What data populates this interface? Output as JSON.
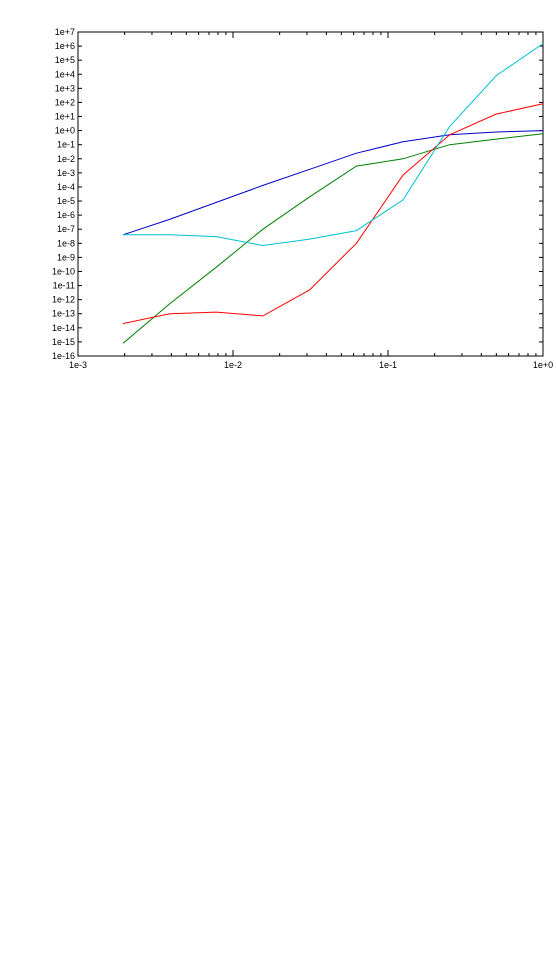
{
  "chart_data": {
    "type": "line",
    "title": "",
    "xlabel": "",
    "ylabel": "",
    "x_scale": "log",
    "y_scale": "log",
    "xlim": [
      0.001,
      1
    ],
    "ylim": [
      1e-16,
      10000000.0
    ],
    "x_ticks": [
      "1e-3",
      "1e-2",
      "1e-1",
      "1e+0"
    ],
    "y_ticks": [
      "1e+7",
      "1e+6",
      "1e+5",
      "1e+4",
      "1e+3",
      "1e+2",
      "1e+1",
      "1e+0",
      "1e-1",
      "1e-2",
      "1e-3",
      "1e-4",
      "1e-5",
      "1e-6",
      "1e-7",
      "1e-8",
      "1e-9",
      "1e-10",
      "1e-11",
      "1e-12",
      "1e-13",
      "1e-14",
      "1e-15",
      "1e-16"
    ],
    "grid": false,
    "series": [
      {
        "color": "#0000cc",
        "x": [
          0.00195,
          0.0039,
          0.0078,
          0.0156,
          0.03125,
          0.0625,
          0.125,
          0.25,
          0.5,
          1.0
        ],
        "y": [
          4e-08,
          5e-07,
          8e-06,
          0.00013,
          0.0018,
          0.025,
          0.16,
          0.5,
          0.8,
          1.0
        ]
      },
      {
        "color": "#008000",
        "x": [
          0.00195,
          0.0039,
          0.0078,
          0.0156,
          0.03125,
          0.0625,
          0.125,
          0.25,
          0.5,
          1.0
        ],
        "y": [
          8e-16,
          5e-13,
          2e-10,
          1e-07,
          2e-05,
          0.003,
          0.01,
          0.1,
          0.25,
          0.6
        ]
      },
      {
        "color": "#ff0000",
        "x": [
          0.00195,
          0.0039,
          0.0078,
          0.0156,
          0.03125,
          0.0625,
          0.125,
          0.25,
          0.5,
          1.0
        ],
        "y": [
          2e-14,
          1e-13,
          1.3e-13,
          7e-14,
          5e-12,
          1e-08,
          0.0007,
          0.5,
          15.0,
          80.0
        ]
      },
      {
        "color": "#00c0d0",
        "x": [
          0.00195,
          0.0039,
          0.0078,
          0.0156,
          0.03125,
          0.0625,
          0.125,
          0.25,
          0.5,
          1.0
        ],
        "y": [
          4e-08,
          4e-08,
          3e-08,
          7e-09,
          2e-08,
          8e-08,
          1.2e-05,
          2.0,
          8000.0,
          1500000.0
        ]
      }
    ]
  }
}
